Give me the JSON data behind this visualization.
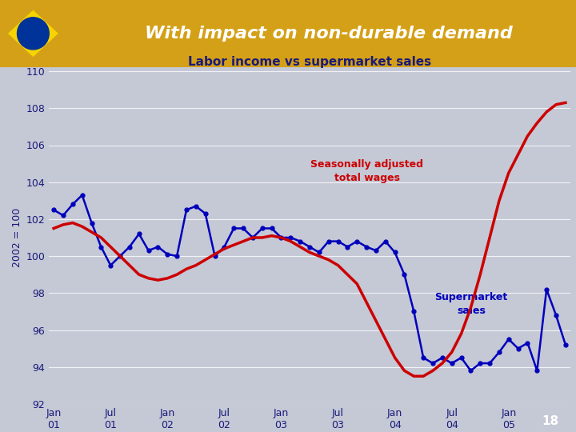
{
  "title": "With impact on non-durable demand",
  "subtitle": "Labor income vs supermarket sales",
  "ylabel": "2002 = 100",
  "ylim": [
    92,
    110
  ],
  "yticks": [
    92,
    94,
    96,
    98,
    100,
    102,
    104,
    106,
    108,
    110
  ],
  "xtick_labels": [
    "Jan\n01",
    "Jul\n01",
    "Jan\n02",
    "Jul\n02",
    "Jan\n03",
    "Jul\n03",
    "Jan\n04",
    "Jul\n04",
    "Jan\n05"
  ],
  "header_bg": "#d4a017",
  "chart_bg": "#c5c8d5",
  "footer_bg": "#1a3a6e",
  "title_color": "#ffffff",
  "subtitle_color": "#1a1a7a",
  "label_color": "#1a1a7a",
  "red_label": "Seasonally adjusted\ntotal wages",
  "blue_label": "Supermarket\nsales",
  "red_color": "#cc0000",
  "blue_color": "#0000bb",
  "red_y": [
    101.5,
    101.7,
    101.8,
    101.6,
    101.3,
    101.0,
    100.5,
    100.0,
    99.5,
    99.0,
    98.8,
    98.7,
    98.8,
    99.0,
    99.3,
    99.5,
    99.8,
    100.1,
    100.4,
    100.6,
    100.8,
    101.0,
    101.0,
    101.1,
    101.0,
    100.8,
    100.5,
    100.2,
    100.0,
    99.8,
    99.5,
    99.0,
    98.5,
    97.5,
    96.5,
    95.5,
    94.5,
    93.8,
    93.5,
    93.5,
    93.8,
    94.2,
    94.8,
    95.8,
    97.2,
    99.0,
    101.0,
    103.0,
    104.5,
    105.5,
    106.5,
    107.2,
    107.8,
    108.2,
    108.3
  ],
  "blue_y": [
    102.5,
    102.2,
    102.8,
    103.3,
    101.8,
    100.5,
    99.5,
    100.0,
    100.5,
    101.2,
    100.3,
    100.5,
    100.1,
    100.0,
    102.5,
    102.7,
    102.3,
    100.0,
    100.5,
    101.5,
    101.5,
    101.0,
    101.5,
    101.5,
    101.0,
    101.0,
    100.8,
    100.5,
    100.2,
    100.8,
    100.8,
    100.5,
    100.8,
    100.5,
    100.3,
    100.8,
    100.2,
    99.0,
    97.0,
    94.5,
    94.2,
    94.5,
    94.2,
    94.5,
    93.8,
    94.2,
    94.2,
    94.8,
    95.5,
    95.0,
    95.3,
    93.8,
    98.2,
    96.8,
    95.2
  ],
  "num_points": 55
}
